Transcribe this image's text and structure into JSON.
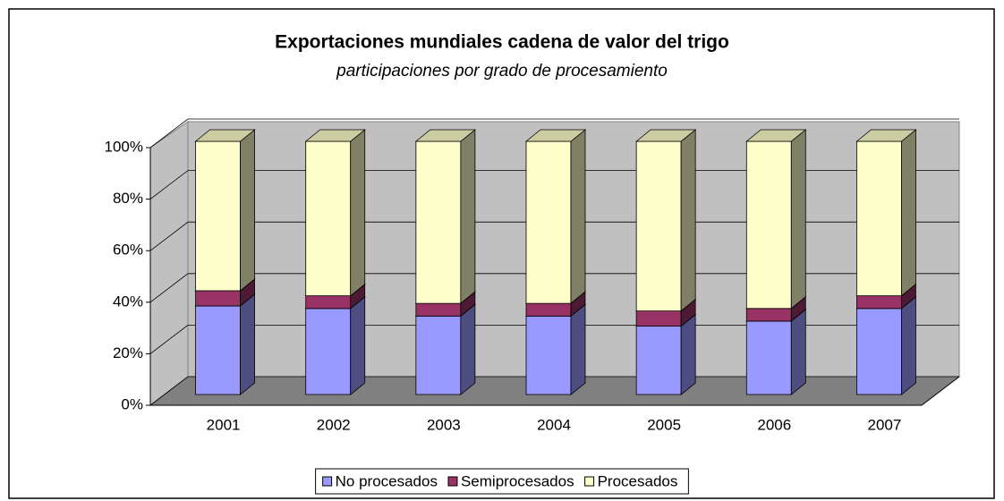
{
  "chart_data": {
    "type": "bar3d_stacked",
    "title": "Exportaciones mundiales cadena de valor del trigo",
    "subtitle": "participaciones por grado de procesamiento",
    "categories": [
      "2001",
      "2002",
      "2003",
      "2004",
      "2005",
      "2006",
      "2007"
    ],
    "series": [
      {
        "name": "No procesados",
        "color": "#9999ff",
        "values": [
          35,
          34,
          31,
          31,
          27,
          29,
          34
        ]
      },
      {
        "name": "Semiprocesados",
        "color": "#993366",
        "values": [
          6,
          5,
          5,
          5,
          6,
          5,
          5
        ]
      },
      {
        "name": "Procesados",
        "color": "#ffffcc",
        "values": [
          59,
          61,
          64,
          64,
          67,
          66,
          61
        ]
      }
    ],
    "ylim": [
      0,
      100
    ],
    "yticks": [
      {
        "value": 0,
        "label": "0%"
      },
      {
        "value": 20,
        "label": "20%"
      },
      {
        "value": 40,
        "label": "40%"
      },
      {
        "value": 60,
        "label": "60%"
      },
      {
        "value": 80,
        "label": "80%"
      },
      {
        "value": 100,
        "label": "100%"
      }
    ],
    "grid": true,
    "legend": "bottom"
  }
}
